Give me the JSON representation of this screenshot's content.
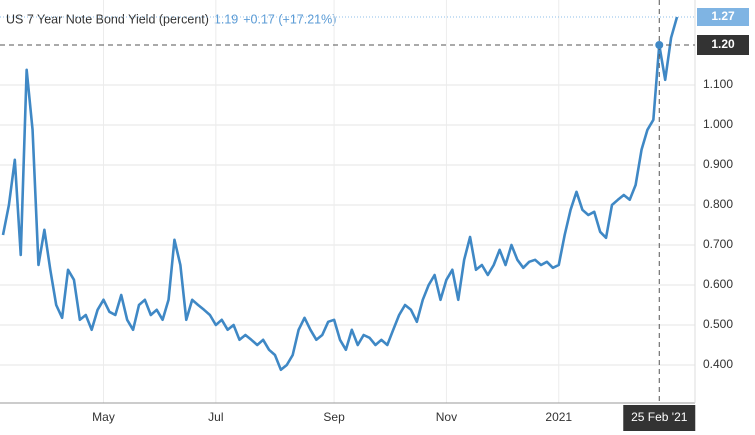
{
  "chart_data": {
    "type": "line",
    "title": "US 7 Year Note Bond Yield (percent)",
    "price": "1.19",
    "change": "+0.17 (+17.21%)",
    "categories": [
      null,
      null,
      null,
      null,
      null,
      null,
      null,
      null,
      null,
      null,
      null,
      null,
      null,
      null,
      null,
      null,
      null,
      "May",
      null,
      null,
      null,
      null,
      null,
      null,
      null,
      null,
      null,
      null,
      null,
      null,
      null,
      null,
      null,
      null,
      null,
      null,
      "Jul",
      null,
      null,
      null,
      null,
      null,
      null,
      null,
      null,
      null,
      null,
      null,
      null,
      null,
      null,
      null,
      null,
      null,
      null,
      null,
      "Sep",
      null,
      null,
      null,
      null,
      null,
      null,
      null,
      null,
      null,
      null,
      null,
      null,
      null,
      null,
      null,
      null,
      null,
      null,
      "Nov",
      null,
      null,
      null,
      null,
      null,
      null,
      null,
      null,
      null,
      null,
      null,
      null,
      null,
      null,
      null,
      null,
      null,
      null,
      "2021",
      null,
      null,
      null,
      null,
      null,
      null,
      null,
      null,
      null,
      null,
      null,
      null,
      null,
      null,
      null,
      null,
      "25 Feb '21",
      null,
      null,
      null
    ],
    "series": [
      {
        "name": "US 7 Year Note Bond Yield",
        "color": "#3f88c5",
        "values": [
          0.725,
          0.8,
          0.913,
          0.675,
          1.138,
          0.988,
          0.65,
          0.738,
          0.638,
          0.55,
          0.518,
          0.638,
          0.613,
          0.513,
          0.525,
          0.488,
          0.538,
          0.563,
          0.533,
          0.525,
          0.575,
          0.513,
          0.488,
          0.55,
          0.563,
          0.525,
          0.538,
          0.513,
          0.563,
          0.713,
          0.65,
          0.513,
          0.563,
          0.55,
          0.538,
          0.525,
          0.5,
          0.513,
          0.488,
          0.5,
          0.463,
          0.475,
          0.463,
          0.45,
          0.463,
          0.438,
          0.425,
          0.388,
          0.4,
          0.425,
          0.488,
          0.518,
          0.488,
          0.463,
          0.475,
          0.508,
          0.513,
          0.463,
          0.438,
          0.488,
          0.45,
          0.475,
          0.468,
          0.45,
          0.463,
          0.45,
          0.488,
          0.525,
          0.55,
          0.538,
          0.508,
          0.563,
          0.6,
          0.625,
          0.563,
          0.613,
          0.638,
          0.563,
          0.663,
          0.72,
          0.638,
          0.65,
          0.625,
          0.65,
          0.688,
          0.65,
          0.7,
          0.663,
          0.643,
          0.658,
          0.663,
          0.65,
          0.658,
          0.643,
          0.65,
          0.725,
          0.788,
          0.833,
          0.788,
          0.775,
          0.783,
          0.733,
          0.718,
          0.8,
          0.813,
          0.825,
          0.813,
          0.85,
          0.938,
          0.988,
          1.013,
          1.2,
          1.113,
          1.218,
          1.27
        ]
      }
    ],
    "last_value_label": "1.27",
    "crosshair": {
      "value": 1.2,
      "value_label": "1.20"
    },
    "ylim": [
      0.305,
      1.3125
    ],
    "yticks": [
      {
        "value": 0.4,
        "label": "0.400"
      },
      {
        "value": 0.5,
        "label": "0.500"
      },
      {
        "value": 0.6,
        "label": "0.600"
      },
      {
        "value": 0.7,
        "label": "0.700"
      },
      {
        "value": 0.8,
        "label": "0.800"
      },
      {
        "value": 0.9,
        "label": "0.900"
      },
      {
        "value": 1.0,
        "label": "1.000"
      },
      {
        "value": 1.1,
        "label": "1.100"
      }
    ],
    "grid": true
  }
}
